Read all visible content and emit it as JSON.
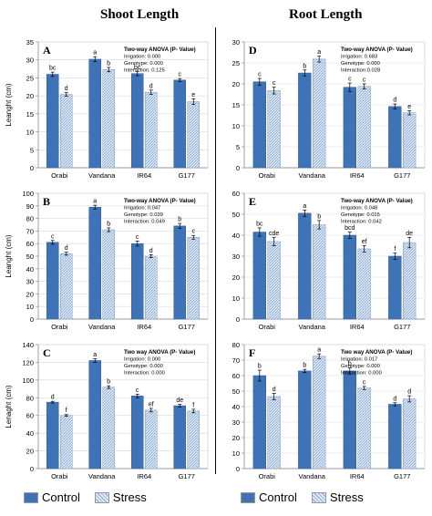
{
  "titles": {
    "left": "Shoot Length",
    "right": "Root Length"
  },
  "legend": {
    "control": "Control",
    "stress": "Stress"
  },
  "colors": {
    "control": "#3f73b8",
    "stress": "#cfe0f2",
    "stress_hatch": "#7f9fc6",
    "axis": "#999999",
    "grid": "#d9d9d9"
  },
  "chart_data": [
    {
      "panel": "A",
      "type": "bar",
      "categories": [
        "Orabi",
        "Vandana",
        "IR64",
        "G177"
      ],
      "ylabel": "Leanght (cm)",
      "ylim": [
        0,
        35
      ],
      "yticks": [
        0,
        5,
        10,
        15,
        20,
        25,
        30,
        35
      ],
      "series": [
        {
          "name": "Control",
          "values": [
            26.0,
            30.2,
            26.2,
            24.4
          ],
          "errors": [
            0.6,
            0.7,
            0.6,
            0.4
          ],
          "labels": [
            "bc",
            "a",
            "bc",
            "c"
          ]
        },
        {
          "name": "Stress",
          "values": [
            20.4,
            27.3,
            21.0,
            18.4
          ],
          "errors": [
            0.5,
            0.6,
            0.6,
            0.8
          ],
          "labels": [
            "d",
            "b",
            "d",
            "e"
          ]
        }
      ],
      "annotation": [
        "Two-way ANOVA (P- Value)",
        "Irrigation: 0.000",
        "Genotype: 0.000",
        "Interaction: 0.125"
      ]
    },
    {
      "panel": "B",
      "type": "bar",
      "categories": [
        "Orabi",
        "Vandana",
        "IR64",
        "G177"
      ],
      "ylabel": "Leanght (cm)",
      "ylim": [
        0,
        100
      ],
      "yticks": [
        0,
        10,
        20,
        30,
        40,
        50,
        60,
        70,
        80,
        90,
        100
      ],
      "series": [
        {
          "name": "Control",
          "values": [
            61,
            89,
            60,
            74
          ],
          "errors": [
            1.5,
            1.5,
            2.0,
            2.0
          ],
          "labels": [
            "c",
            "a",
            "c",
            "b"
          ]
        },
        {
          "name": "Stress",
          "values": [
            52,
            71,
            50,
            65
          ],
          "errors": [
            1.2,
            1.5,
            1.2,
            1.5
          ],
          "labels": [
            "d",
            "b",
            "d",
            "c"
          ]
        }
      ],
      "annotation": [
        "Two-way ANOVA (P- Value)",
        "Irrigation: 0.047",
        "Genotype: 0.039",
        "Interaction: 0.049"
      ]
    },
    {
      "panel": "C",
      "type": "bar",
      "categories": [
        "Orabi",
        "Vandana",
        "IR64",
        "G177"
      ],
      "ylabel": "Lenaght (cm)",
      "ylim": [
        0,
        140
      ],
      "yticks": [
        0,
        20,
        40,
        60,
        80,
        100,
        120,
        140
      ],
      "series": [
        {
          "name": "Control",
          "values": [
            75,
            122,
            82,
            71
          ],
          "errors": [
            1.0,
            2.0,
            2.0,
            1.5
          ],
          "labels": [
            "d",
            "a",
            "c",
            "de"
          ]
        },
        {
          "name": "Stress",
          "values": [
            60,
            92,
            66,
            65
          ],
          "errors": [
            1.0,
            1.5,
            2.0,
            2.0
          ],
          "labels": [
            "f",
            "b",
            "ef",
            "f"
          ]
        }
      ],
      "annotation": [
        "Two way ANOVA (P- Value)",
        "Irrigation: 0.000",
        "Genotype: 0.000",
        "Interaction: 0.000"
      ]
    },
    {
      "panel": "D",
      "type": "bar",
      "categories": [
        "Orabi",
        "Vandana",
        "IR64",
        "G177"
      ],
      "ylabel": "",
      "ylim": [
        0,
        30
      ],
      "yticks": [
        0,
        5,
        10,
        15,
        20,
        25,
        30
      ],
      "series": [
        {
          "name": "Control",
          "values": [
            20.5,
            22.6,
            19.2,
            14.6
          ],
          "errors": [
            0.8,
            0.7,
            1.0,
            0.6
          ],
          "labels": [
            "c",
            "b",
            "c",
            "d"
          ]
        },
        {
          "name": "Stress",
          "values": [
            18.4,
            25.9,
            19.4,
            13.1
          ],
          "errors": [
            0.8,
            0.7,
            0.6,
            0.5
          ],
          "labels": [
            "c",
            "a",
            "c",
            "e"
          ]
        }
      ],
      "annotation": [
        "Two-way ANOVA (P- Value)",
        "Irrigation: 0.683",
        "Genotype: 0.000",
        "Interaction:0.028"
      ]
    },
    {
      "panel": "E",
      "type": "bar",
      "categories": [
        "Orabi",
        "Vandana",
        "IR64",
        "G177"
      ],
      "ylabel": "",
      "ylim": [
        0,
        60
      ],
      "yticks": [
        0,
        10,
        20,
        30,
        40,
        50,
        60
      ],
      "series": [
        {
          "name": "Control",
          "values": [
            41.5,
            50.5,
            40,
            30
          ],
          "errors": [
            2.0,
            1.5,
            1.5,
            1.5
          ],
          "labels": [
            "bc",
            "a",
            "bcd",
            "f"
          ]
        },
        {
          "name": "Stress",
          "values": [
            37,
            45,
            33.5,
            36.5
          ],
          "errors": [
            2.0,
            2.0,
            1.5,
            2.5
          ],
          "labels": [
            "cde",
            "b",
            "ef",
            "de"
          ]
        }
      ],
      "annotation": [
        "Two-way ANOVA (P- Value)",
        "Irrigation: 0.048",
        "Genotype: 0.015",
        "Interaction: 0.042"
      ]
    },
    {
      "panel": "F",
      "type": "bar",
      "categories": [
        "Orabi",
        "Vandana",
        "IR64",
        "G177"
      ],
      "ylabel": "",
      "ylim": [
        0,
        80
      ],
      "yticks": [
        0,
        10,
        20,
        30,
        40,
        50,
        60,
        70,
        80
      ],
      "series": [
        {
          "name": "Control",
          "values": [
            60,
            63,
            63,
            41.5
          ],
          "errors": [
            3.5,
            1.0,
            2.0,
            1.0
          ],
          "labels": [
            "b",
            "b",
            "b",
            "d"
          ]
        },
        {
          "name": "Stress",
          "values": [
            46.5,
            72.5,
            52,
            45
          ],
          "errors": [
            2.0,
            1.5,
            1.0,
            2.0
          ],
          "labels": [
            "d",
            "a",
            "c",
            "d"
          ]
        }
      ],
      "annotation": [
        "Two way ANOVA (P- Value)",
        "Irrigation: 0.017",
        "Genotype: 0.000",
        "Interaction: 0.000"
      ]
    }
  ]
}
